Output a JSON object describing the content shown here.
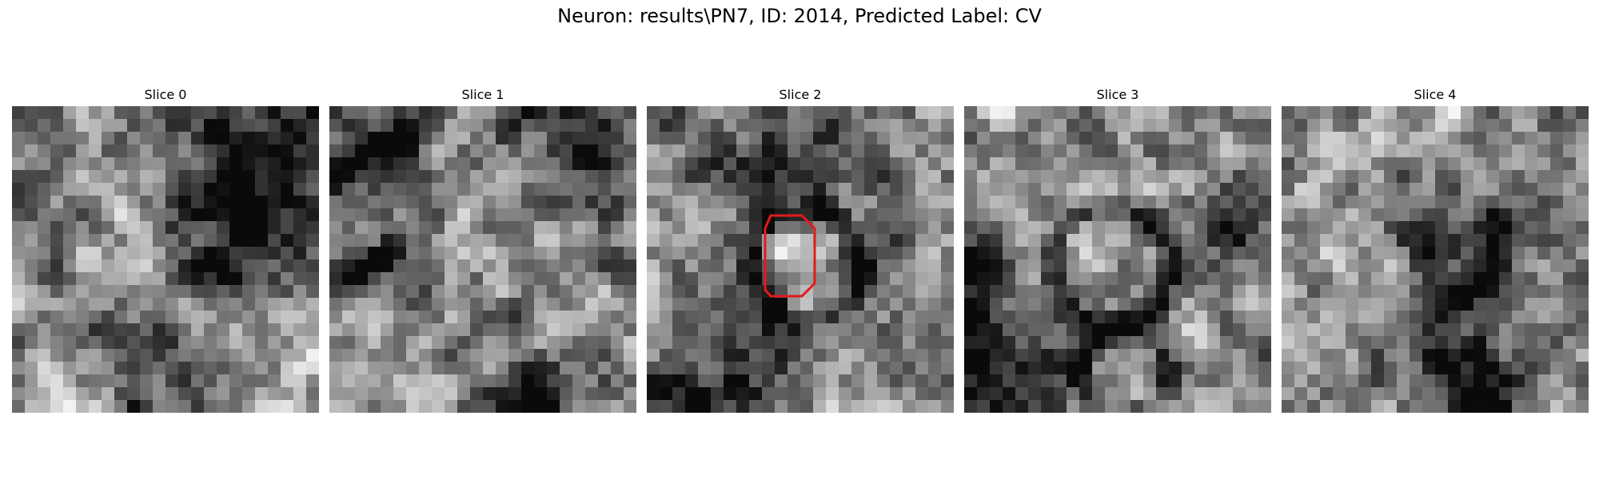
{
  "figure": {
    "title": "Neuron: results\\PN7, ID: 2014, Predicted Label: CV"
  },
  "colormap": "gray",
  "outline_color": "#e41a1c",
  "slices": [
    {
      "label": "Slice 0",
      "seed": 11,
      "has_outline": false
    },
    {
      "label": "Slice 1",
      "seed": 29,
      "has_outline": false
    },
    {
      "label": "Slice 2",
      "seed": 47,
      "has_outline": true
    },
    {
      "label": "Slice 3",
      "seed": 63,
      "has_outline": false
    },
    {
      "label": "Slice 4",
      "seed": 81,
      "has_outline": false
    }
  ]
}
